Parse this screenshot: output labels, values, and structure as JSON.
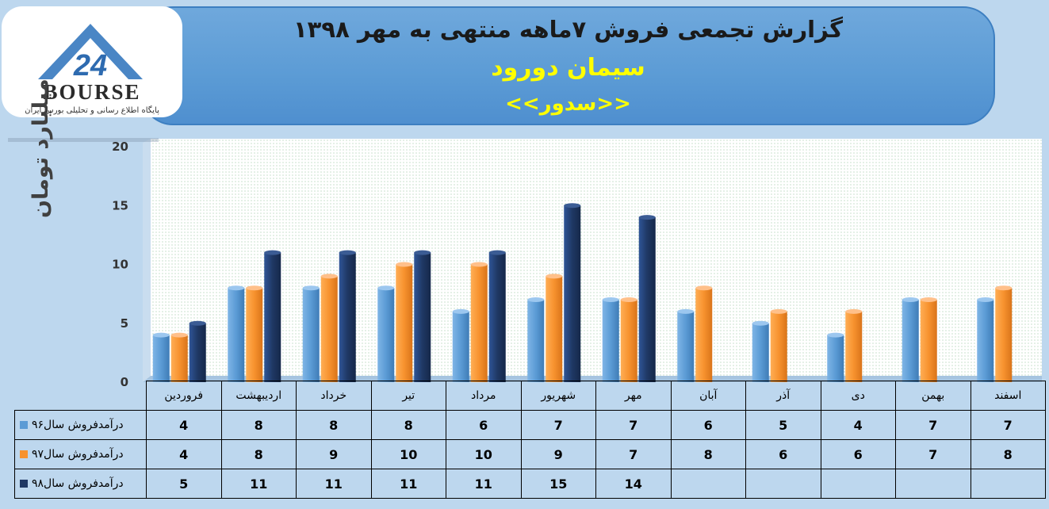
{
  "header": {
    "title": "گزارش تجمعی فروش ۷ماهه منتهی به مهر ۱۳۹۸",
    "company": "سیمان دورود",
    "symbol": "<<سدور>>"
  },
  "logo": {
    "brand": "BOURSE",
    "number": "24",
    "tagline": "پایگاه اطلاع رسانی و تحلیلی بورس ایران"
  },
  "colors": {
    "s96": "#5b9bd5",
    "s97": "#f7922e",
    "s98": "#1f3864",
    "banner": "#5b9bd5",
    "title_yellow": "#ffff00"
  },
  "chart_data": {
    "type": "bar",
    "ylabel": "میلیارد تومان",
    "ylim": [
      0,
      20
    ],
    "yticks": [
      0,
      5,
      10,
      15,
      20
    ],
    "grid": false,
    "legend": "table",
    "categories": [
      "فروردین",
      "اردیبهشت",
      "خرداد",
      "تیر",
      "مرداد",
      "شهریور",
      "مهر",
      "آبان",
      "آذر",
      "دی",
      "بهمن",
      "اسفند"
    ],
    "series": [
      {
        "name": "درآمدفروش سال۹۶",
        "values": [
          4,
          8,
          8,
          8,
          6,
          7,
          7,
          6,
          5,
          4,
          7,
          7
        ]
      },
      {
        "name": "درآمدفروش سال۹۷",
        "values": [
          4,
          8,
          9,
          10,
          10,
          9,
          7,
          8,
          6,
          6,
          7,
          8
        ]
      },
      {
        "name": "درآمدفروش سال۹۸",
        "values": [
          5,
          11,
          11,
          11,
          11,
          15,
          14,
          null,
          null,
          null,
          null,
          null
        ]
      }
    ]
  }
}
